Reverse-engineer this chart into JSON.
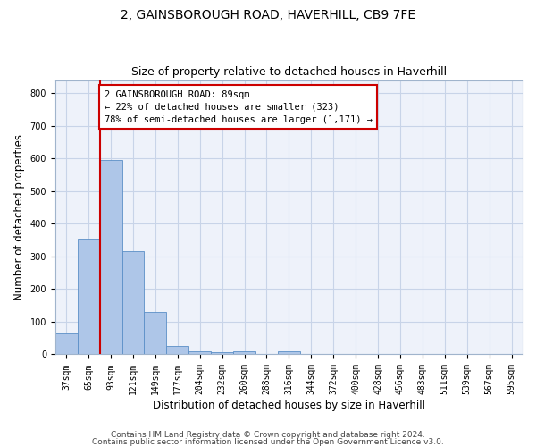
{
  "title": "2, GAINSBOROUGH ROAD, HAVERHILL, CB9 7FE",
  "subtitle": "Size of property relative to detached houses in Haverhill",
  "xlabel": "Distribution of detached houses by size in Haverhill",
  "ylabel": "Number of detached properties",
  "bin_labels": [
    "37sqm",
    "65sqm",
    "93sqm",
    "121sqm",
    "149sqm",
    "177sqm",
    "204sqm",
    "232sqm",
    "260sqm",
    "288sqm",
    "316sqm",
    "344sqm",
    "372sqm",
    "400sqm",
    "428sqm",
    "456sqm",
    "483sqm",
    "511sqm",
    "539sqm",
    "567sqm",
    "595sqm"
  ],
  "bar_values": [
    65,
    355,
    595,
    315,
    130,
    25,
    10,
    8,
    10,
    0,
    10,
    0,
    0,
    0,
    0,
    0,
    0,
    0,
    0,
    0,
    0
  ],
  "bar_color": "#aec6e8",
  "bar_edge_color": "#5b8fc7",
  "annotation_text": "2 GAINSBOROUGH ROAD: 89sqm\n← 22% of detached houses are smaller (323)\n78% of semi-detached houses are larger (1,171) →",
  "annotation_box_color": "#ffffff",
  "annotation_box_edge_color": "#cc0000",
  "reference_line_color": "#cc0000",
  "grid_color": "#c8d4e8",
  "background_color": "#eef2fa",
  "ylim": [
    0,
    840
  ],
  "yticks": [
    0,
    100,
    200,
    300,
    400,
    500,
    600,
    700,
    800
  ],
  "footer_line1": "Contains HM Land Registry data © Crown copyright and database right 2024.",
  "footer_line2": "Contains public sector information licensed under the Open Government Licence v3.0.",
  "title_fontsize": 10,
  "subtitle_fontsize": 9,
  "xlabel_fontsize": 8.5,
  "ylabel_fontsize": 8.5,
  "tick_fontsize": 7,
  "annotation_fontsize": 7.5,
  "footer_fontsize": 6.5
}
